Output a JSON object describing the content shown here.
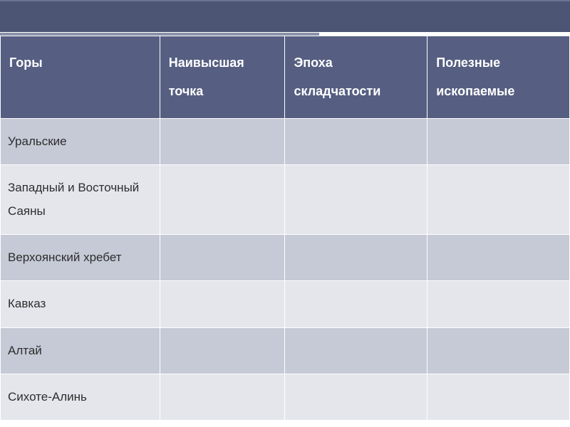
{
  "table": {
    "type": "table",
    "header_bg_color": "#565f82",
    "header_text_color": "#ffffff",
    "row_colors": [
      "#c6cad6",
      "#e4e6ec"
    ],
    "border_color": "#ffffff",
    "text_color": "#2d2d2d",
    "header_fontsize": 18,
    "cell_fontsize": 17,
    "columns": [
      {
        "label": "Горы",
        "width": "28%"
      },
      {
        "label": "Наивысшая точка",
        "width": "22%"
      },
      {
        "label": "Эпоха складчатости",
        "width": "25%"
      },
      {
        "label": "Полезные ископаемые",
        "width": "25%"
      }
    ],
    "rows": [
      [
        "Уральские",
        "",
        "",
        ""
      ],
      [
        "Западный и Восточный Саяны",
        "",
        "",
        ""
      ],
      [
        "Верхоянский хребет",
        "",
        "",
        ""
      ],
      [
        "Кавказ",
        "",
        "",
        ""
      ],
      [
        " Алтай",
        "",
        "",
        ""
      ],
      [
        " Сихоте-Алинь",
        "",
        "",
        ""
      ]
    ]
  },
  "top_bar": {
    "bg_color": "#4d5574",
    "divider_color": "#8a92a8"
  }
}
